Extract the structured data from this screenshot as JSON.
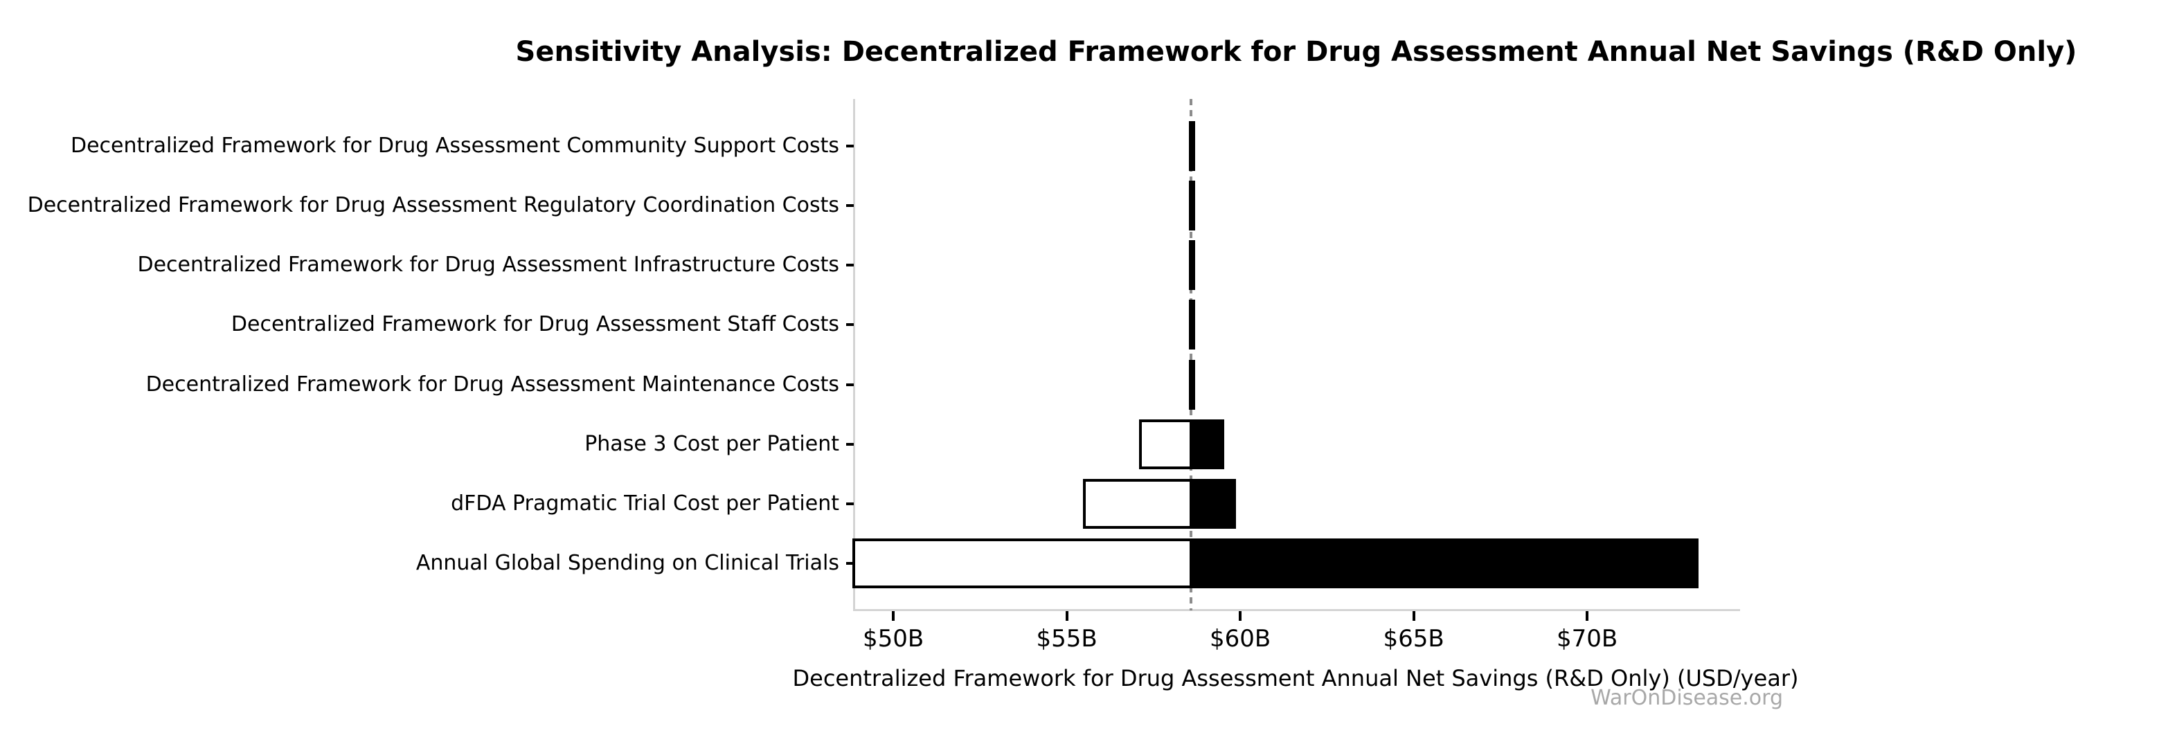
{
  "watermark": "WarOnDisease.org",
  "colors": {
    "low_fill": "#ffffff",
    "high_fill": "#000000",
    "bar_edge": "#000000",
    "baseline_line": "#8c8c8c",
    "spine": "#d4d4d4",
    "watermark_color": "#a8a8a8"
  },
  "chart_data": {
    "type": "bar",
    "subtype": "tornado",
    "orientation": "horizontal",
    "title": "Sensitivity Analysis: Decentralized Framework for Drug Assessment Annual Net Savings (R&D Only)",
    "xlabel": "Decentralized Framework for Drug Assessment Annual Net Savings (R&D Only) (USD/year)",
    "ylabel": "",
    "baseline": 58.58,
    "xlim": [
      48.86,
      74.35
    ],
    "grid": false,
    "legend": false,
    "xticks": [
      {
        "value": 50,
        "label": "$50B"
      },
      {
        "value": 55,
        "label": "$55B"
      },
      {
        "value": 60,
        "label": "$60B"
      },
      {
        "value": 65,
        "label": "$65B"
      },
      {
        "value": 70,
        "label": "$70B"
      }
    ],
    "bars": [
      {
        "label": "Decentralized Framework for Drug Assessment Community Support Costs",
        "low": 58.57,
        "high": 58.6
      },
      {
        "label": "Decentralized Framework for Drug Assessment Regulatory Coordination Costs",
        "low": 58.57,
        "high": 58.6
      },
      {
        "label": "Decentralized Framework for Drug Assessment Infrastructure Costs",
        "low": 58.57,
        "high": 58.6
      },
      {
        "label": "Decentralized Framework for Drug Assessment Staff Costs",
        "low": 58.57,
        "high": 58.6
      },
      {
        "label": "Decentralized Framework for Drug Assessment Maintenance Costs",
        "low": 58.57,
        "high": 58.6
      },
      {
        "label": "Phase 3 Cost per Patient",
        "low": 57.13,
        "high": 59.5
      },
      {
        "label": "dFDA Pragmatic Trial Cost per Patient",
        "low": 55.51,
        "high": 59.84
      },
      {
        "label": "Annual Global Spending on Clinical Trials",
        "low": 48.86,
        "high": 73.17
      }
    ]
  }
}
